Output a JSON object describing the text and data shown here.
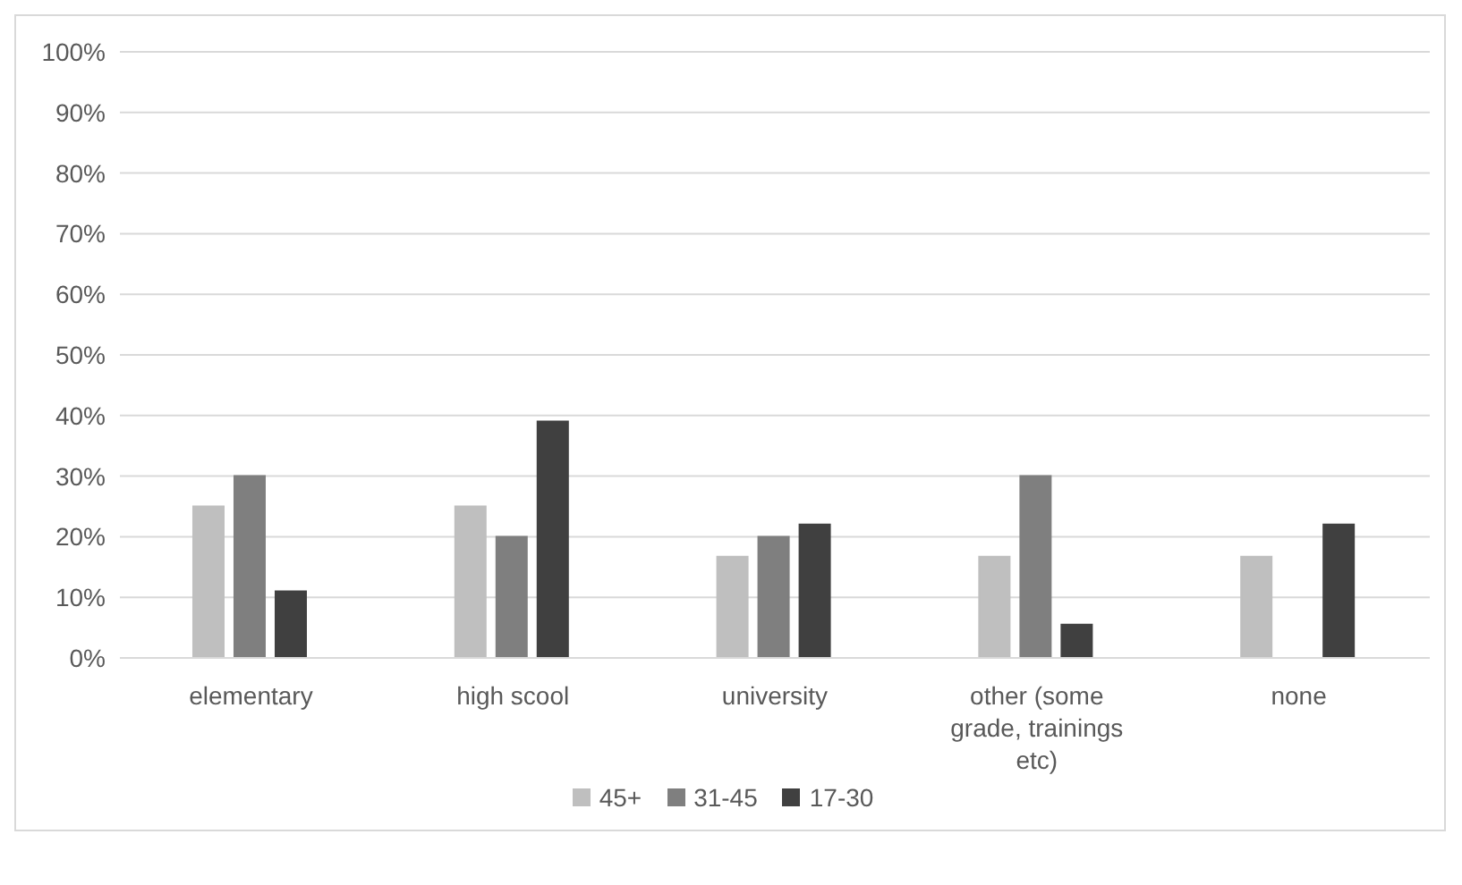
{
  "chart_data": {
    "type": "bar",
    "categories": [
      "elementary",
      "high scool",
      "university",
      "other (some grade, trainings etc)",
      "none"
    ],
    "series": [
      {
        "name": "45+",
        "color": "#bfbfbf",
        "values": [
          25,
          25,
          16.7,
          16.7,
          16.7
        ]
      },
      {
        "name": "31-45",
        "color": "#7f7f7f",
        "values": [
          30,
          20,
          20,
          30,
          0
        ]
      },
      {
        "name": "17-30",
        "color": "#404040",
        "values": [
          11,
          39,
          22,
          5.5,
          22
        ]
      }
    ],
    "ylim": [
      0,
      100
    ],
    "yticks": [
      {
        "value": 0,
        "label": "0%"
      },
      {
        "value": 10,
        "label": "10%"
      },
      {
        "value": 20,
        "label": "20%"
      },
      {
        "value": 30,
        "label": "30%"
      },
      {
        "value": 40,
        "label": "40%"
      },
      {
        "value": 50,
        "label": "50%"
      },
      {
        "value": 60,
        "label": "60%"
      },
      {
        "value": 70,
        "label": "70%"
      },
      {
        "value": 80,
        "label": "80%"
      },
      {
        "value": 90,
        "label": "90%"
      },
      {
        "value": 100,
        "label": "100%"
      }
    ],
    "grid": "y",
    "legend": "bottom"
  }
}
